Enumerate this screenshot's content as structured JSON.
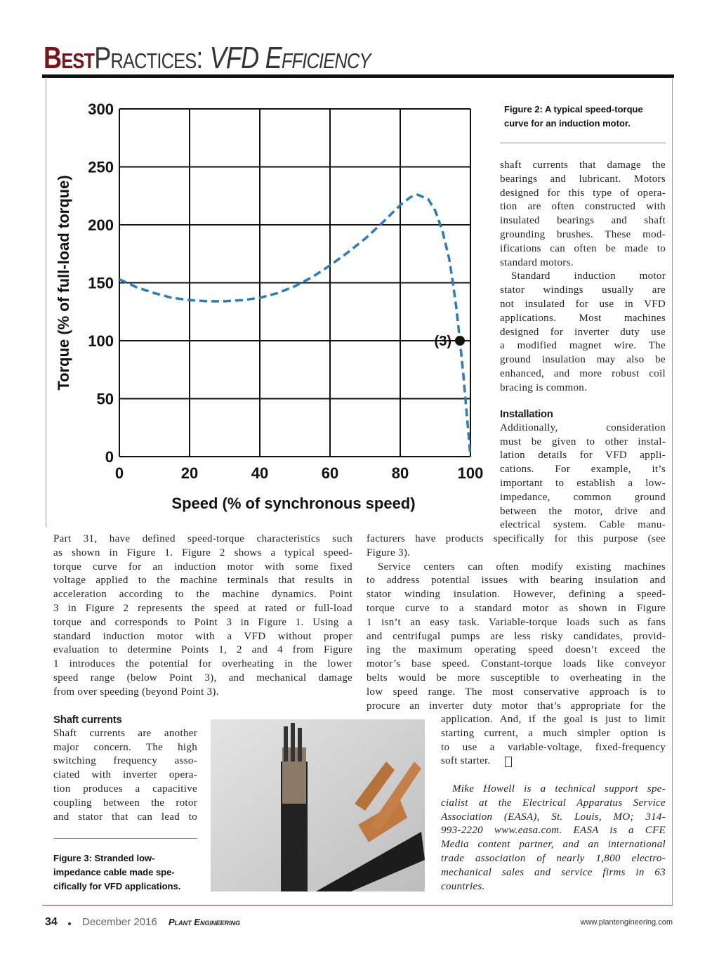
{
  "header": {
    "bold": "Best",
    "light": "Practices:",
    "italic": "VFD Efficiency"
  },
  "figure2": {
    "caption": [
      "Figure 2: A typical speed-torque",
      "curve for an induction motor."
    ]
  },
  "chart_data": {
    "type": "line",
    "xlabel": "Speed (% of synchronous speed)",
    "ylabel": "Torque (% of full-load torque)",
    "x": [
      0,
      5,
      10,
      15,
      20,
      25,
      30,
      35,
      40,
      45,
      50,
      55,
      60,
      65,
      70,
      75,
      80,
      83,
      85,
      88,
      90,
      92,
      94,
      95,
      96,
      97,
      98,
      99,
      100
    ],
    "values": [
      153,
      146,
      141,
      137,
      135,
      134,
      134,
      135,
      137,
      141,
      147,
      155,
      165,
      176,
      188,
      202,
      217,
      224,
      226,
      222,
      212,
      195,
      170,
      150,
      128,
      100,
      70,
      35,
      0
    ],
    "color": "#2c7bbf",
    "xlim": [
      0,
      100
    ],
    "ylim": [
      0,
      300
    ],
    "xticks": [
      0,
      20,
      40,
      60,
      80,
      100
    ],
    "yticks": [
      0,
      50,
      100,
      150,
      200,
      250,
      300
    ],
    "grid": true,
    "annotation": {
      "label": "(3)",
      "x": 97,
      "y": 100
    }
  },
  "columns": {
    "top_right": {
      "paragraphs": [
        [
          "shaft currents that damage the",
          "bearings and lubricant. Motors",
          "designed for this type of opera-",
          "tion are often constructed with",
          "insulated bearings and shaft",
          "grounding brushes. These mod-",
          "ifications can often be made to",
          "standard motors."
        ],
        [
          "Standard induction motor",
          "stator windings usually are",
          "not insulated for use in VFD",
          "applications. Most machines",
          "designed for inverter duty use",
          "a modified magnet wire. The",
          "ground insulation may also be",
          "enhanced, and more robust coil",
          "bracing is common."
        ]
      ]
    },
    "installation": {
      "heading": "Installation",
      "paragraphs": [
        [
          "Additionally, consideration",
          "must be given to other instal-",
          "lation details for VFD appli-",
          "cations. For example, it’s",
          "important to establish a low-",
          "impedance, common ground",
          "between the motor, drive and",
          "electrical system. Cable manu-"
        ]
      ]
    },
    "wide_right": {
      "paragraphs": [
        [
          "facturers have products specifically for this purpose (see",
          "Figure 3)."
        ],
        [
          "Service centers can often modify existing machines",
          "to address potential issues with bearing insulation and",
          "stator winding insulation. However, defining a speed-",
          "torque curve to a standard motor as shown in Figure",
          "1 isn’t an easy task. Variable-torque loads such as fans",
          "and centrifugal pumps are less risky candidates, provid-",
          "ing the maximum operating speed doesn’t exceed the",
          "motor’s base speed. Constant-torque loads like conveyor",
          "belts would be more susceptible to overheating in the",
          "low speed range. The most conservative approach is to",
          "procure an inverter duty motor that’s appropriate for the"
        ]
      ]
    },
    "narrow_right": {
      "paragraphs": [
        [
          "application. And, if the goal is just to limit",
          "starting current, a much simpler option is",
          "to use a variable-voltage, fixed-frequency",
          "soft starter."
        ]
      ]
    },
    "bio": {
      "paragraphs": [
        [
          "Mike Howell is a technical support spe-",
          "cialist at the Electrical Apparatus Service",
          "Association (EASA), St. Louis, MO; 314-",
          "993-2220 www.easa.com. EASA is a CFE",
          "Media content partner, and an international",
          "trade association of nearly 1,800 electro-",
          "mechanical sales and service firms in 63",
          "countries."
        ]
      ]
    },
    "left": {
      "paragraphs": [
        [
          "Part 31, have defined speed-torque characteristics such",
          "as shown in Figure 1. Figure 2 shows a typical speed-",
          "torque curve for an induction motor with some fixed",
          "voltage applied to the machine terminals that results in",
          "acceleration according to the machine dynamics. Point",
          "3 in Figure 2 represents the speed at rated or full-load",
          "torque and corresponds to Point 3 in Figure 1. Using a",
          "standard induction motor with a VFD without proper",
          "evaluation to determine Points 1, 2 and 4 from Figure",
          "1 introduces the potential for overheating in the lower",
          "speed range (below Point 3), and mechanical damage",
          "from over speeding (beyond Point 3)."
        ]
      ]
    },
    "shaft_currents": {
      "heading": "Shaft currents",
      "paragraphs": [
        [
          "Shaft currents are another",
          "major concern. The high",
          "switching frequency asso-",
          "ciated with inverter opera-",
          "tion produces a capacitive",
          "coupling between the rotor",
          "and stator that can lead to"
        ]
      ]
    }
  },
  "figure3": {
    "caption": [
      "Figure 3: Stranded low-",
      "impedance cable made spe-",
      "cifically for VFD applications."
    ]
  },
  "footer": {
    "page": "34",
    "date": "December 2016",
    "magazine": "Plant Engineering",
    "url": "www.plantengineering.com"
  }
}
